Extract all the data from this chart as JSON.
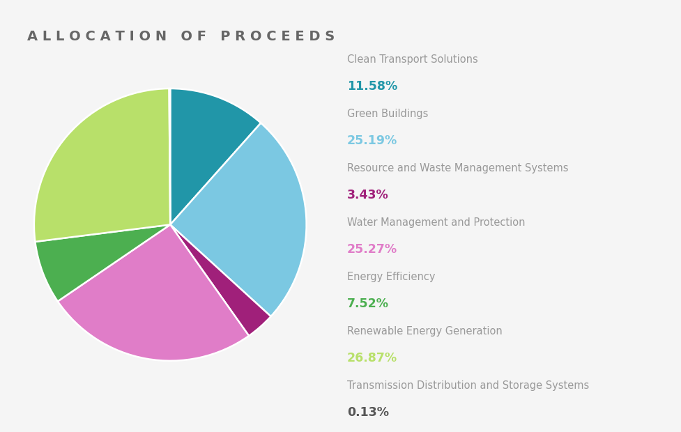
{
  "title": "ALLOCATION OF PROCEEDS",
  "title_color": "#666666",
  "title_fontsize": 14,
  "background_color": "#f5f5f5",
  "categories": [
    "Clean Transport Solutions",
    "Green Buildings",
    "Resource and Waste Management Systems",
    "Water Management and Protection",
    "Energy Efficiency",
    "Renewable Energy Generation",
    "Transmission Distribution and Storage Systems"
  ],
  "values": [
    11.58,
    25.19,
    3.43,
    25.27,
    7.52,
    26.87,
    0.13
  ],
  "percentages": [
    "11.58%",
    "25.19%",
    "3.43%",
    "25.27%",
    "7.52%",
    "26.87%",
    "0.13%"
  ],
  "pie_colors": [
    "#2196A8",
    "#7BC8E2",
    "#A0207A",
    "#E07DC8",
    "#4CAF50",
    "#B8E06A",
    "#999999"
  ],
  "pct_colors": [
    "#2196A8",
    "#7BC8E2",
    "#A0207A",
    "#E07DC8",
    "#4CAF50",
    "#B8E06A",
    "#555555"
  ],
  "label_color": "#999999",
  "label_fontsize": 10.5,
  "pct_fontsize": 12.5
}
